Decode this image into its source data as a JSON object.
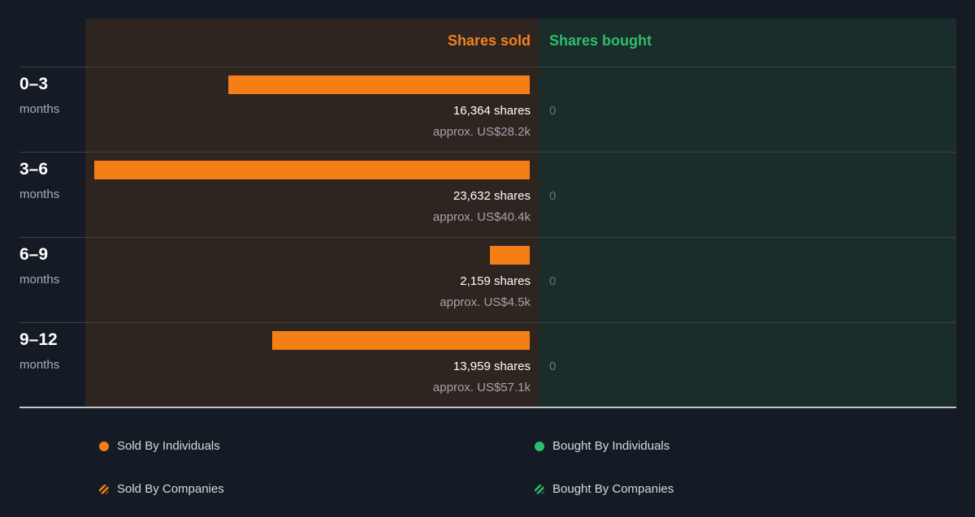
{
  "header": {
    "sold_label": "Shares sold",
    "bought_label": "Shares bought"
  },
  "chart_data": {
    "type": "bar",
    "categories": [
      "0–3 months",
      "3–6 months",
      "6–9 months",
      "9–12 months"
    ],
    "series": [
      {
        "name": "Shares sold",
        "values": [
          16364,
          23632,
          2159,
          13959
        ]
      },
      {
        "name": "Shares bought",
        "values": [
          0,
          0,
          0,
          0
        ]
      }
    ],
    "periods": [
      {
        "range": "0–3",
        "unit": "months",
        "sold_text": "16,364 shares",
        "approx_text": "approx. US$28.2k",
        "bought_text": "0"
      },
      {
        "range": "3–6",
        "unit": "months",
        "sold_text": "23,632 shares",
        "approx_text": "approx. US$40.4k",
        "bought_text": "0"
      },
      {
        "range": "6–9",
        "unit": "months",
        "sold_text": "2,159 shares",
        "approx_text": "approx. US$4.5k",
        "bought_text": "0"
      },
      {
        "range": "9–12",
        "unit": "months",
        "sold_text": "13,959 shares",
        "approx_text": "approx. US$57.1k",
        "bought_text": "0"
      }
    ],
    "max_sold": 23632
  },
  "legend": {
    "sold_individuals": "Sold By Individuals",
    "sold_companies": "Sold By Companies",
    "bought_individuals": "Bought By Individuals",
    "bought_companies": "Bought By Companies"
  },
  "colors": {
    "sold": "#f57f17",
    "bought": "#2ebd6e",
    "sold_panel": "#2e2420",
    "bought_panel": "#1a2d2b",
    "background": "#151b24"
  }
}
